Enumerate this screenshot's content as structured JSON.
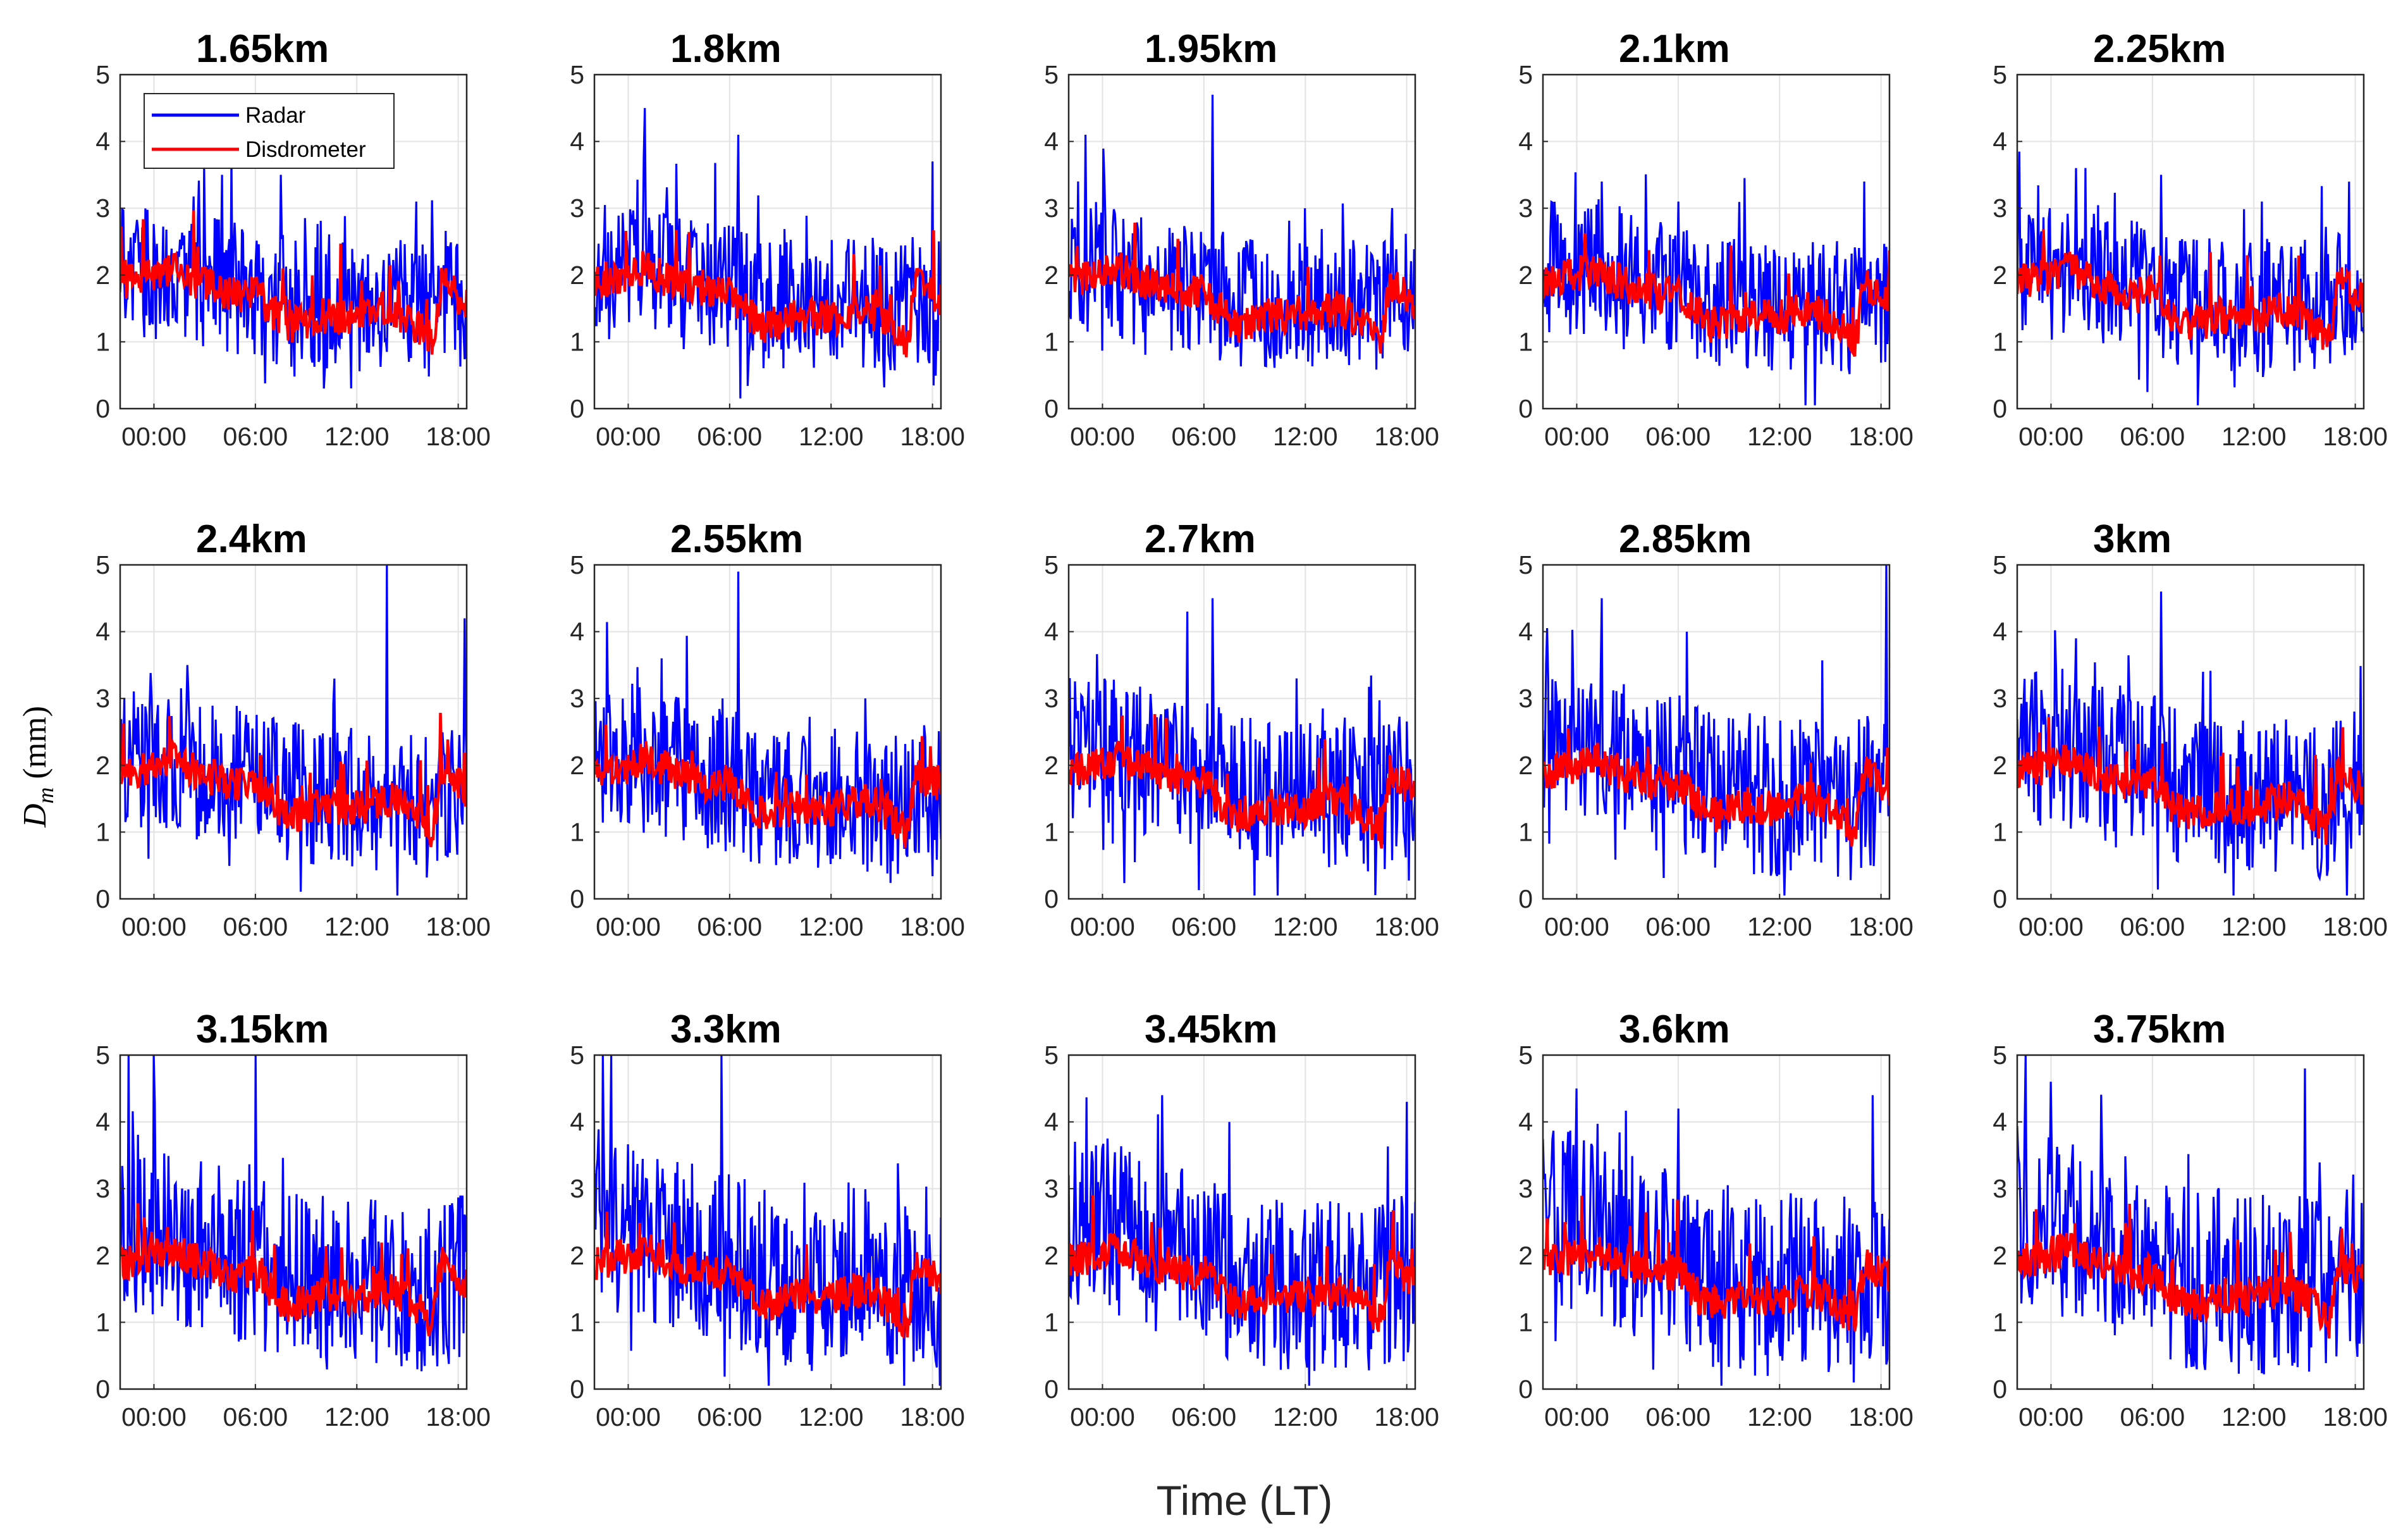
{
  "chart_data": {
    "type": "line",
    "ylabel_main": "D",
    "ylabel_sub": "m",
    "ylabel_unit": " (mm)",
    "xlabel": "Time (LT)",
    "ylim": [
      0,
      5
    ],
    "y_ticks": [
      "0",
      "1",
      "2",
      "3",
      "4",
      "5"
    ],
    "x_ticks": [
      "00:00",
      "06:00",
      "12:00",
      "18:00"
    ],
    "x_tick_hours": [
      0,
      6,
      12,
      18
    ],
    "xlim_hours": [
      -2,
      18.5
    ],
    "legend": {
      "position": "top-left",
      "entries": [
        {
          "name": "Radar",
          "color": "#0000ff"
        },
        {
          "name": "Disdrometer",
          "color": "#ff0000"
        }
      ]
    },
    "series_names": [
      "Radar",
      "Disdrometer"
    ],
    "series_colors": {
      "Radar": "#0000ff",
      "Disdrometer": "#ff0000"
    },
    "disdrometer_profile": {
      "hours": [
        -2,
        0,
        1,
        3,
        5,
        6,
        7,
        8,
        9,
        10,
        12,
        13,
        14,
        15,
        16.5,
        17,
        18,
        18.5
      ],
      "dm": [
        1.9,
        2.0,
        2.1,
        1.85,
        1.7,
        1.75,
        1.45,
        1.25,
        1.3,
        1.4,
        1.35,
        1.45,
        1.5,
        1.35,
        1.0,
        1.9,
        1.7,
        1.6
      ]
    },
    "panels": [
      {
        "title": "1.65km",
        "radar_mean": [
          2.1,
          1.6
        ],
        "radar_spread": 1.0,
        "radar_peaks": [
          [
            4.0,
            3.5
          ],
          [
            7.5,
            3.5
          ],
          [
            15.5,
            3.1
          ]
        ]
      },
      {
        "title": "1.8km",
        "radar_mean": [
          2.1,
          1.6
        ],
        "radar_spread": 1.0,
        "radar_peaks": [
          [
            1.0,
            4.5
          ],
          [
            6.5,
            4.1
          ],
          [
            18.0,
            3.7
          ]
        ]
      },
      {
        "title": "1.95km",
        "radar_mean": [
          2.1,
          1.6
        ],
        "radar_spread": 1.0,
        "radar_peaks": [
          [
            -1.0,
            4.1
          ],
          [
            6.5,
            4.7
          ],
          [
            12.0,
            3.0
          ]
        ]
      },
      {
        "title": "2.1km",
        "radar_mean": [
          2.2,
          1.6
        ],
        "radar_spread": 1.0,
        "radar_peaks": [
          [
            1.5,
            3.4
          ],
          [
            6.0,
            3.1
          ],
          [
            17.0,
            3.4
          ]
        ]
      },
      {
        "title": "2.25km",
        "radar_mean": [
          2.2,
          1.6
        ],
        "radar_spread": 1.0,
        "radar_peaks": [
          [
            1.5,
            3.6
          ],
          [
            6.5,
            3.5
          ],
          [
            12.5,
            3.1
          ]
        ]
      },
      {
        "title": "2.4km",
        "radar_mean": [
          2.3,
          1.5
        ],
        "radar_spread": 1.1,
        "radar_peaks": [
          [
            13.8,
            5.0
          ],
          [
            18.4,
            4.2
          ],
          [
            2.0,
            3.5
          ]
        ]
      },
      {
        "title": "2.55km",
        "radar_mean": [
          2.3,
          1.5
        ],
        "radar_spread": 1.1,
        "radar_peaks": [
          [
            6.5,
            4.9
          ],
          [
            2.0,
            3.6
          ],
          [
            14.0,
            3.0
          ]
        ]
      },
      {
        "title": "2.7km",
        "radar_mean": [
          2.4,
          1.6
        ],
        "radar_spread": 1.1,
        "radar_peaks": [
          [
            5.0,
            4.3
          ],
          [
            6.5,
            4.5
          ],
          [
            11.5,
            3.3
          ]
        ]
      },
      {
        "title": "2.85km",
        "radar_mean": [
          2.5,
          1.6
        ],
        "radar_spread": 1.2,
        "radar_peaks": [
          [
            1.5,
            4.5
          ],
          [
            18.3,
            5.0
          ],
          [
            6.5,
            4.0
          ]
        ]
      },
      {
        "title": "3km",
        "radar_mean": [
          2.5,
          1.6
        ],
        "radar_spread": 1.2,
        "radar_peaks": [
          [
            6.5,
            4.6
          ],
          [
            1.5,
            3.9
          ],
          [
            9.0,
            3.4
          ]
        ]
      },
      {
        "title": "3.15km",
        "radar_mean": [
          2.6,
          1.6
        ],
        "radar_spread": 1.3,
        "radar_peaks": [
          [
            -1.5,
            5.0
          ],
          [
            0.0,
            5.0
          ],
          [
            6.0,
            5.0
          ]
        ]
      },
      {
        "title": "3.3km",
        "radar_mean": [
          2.7,
          1.6
        ],
        "radar_spread": 1.3,
        "radar_peaks": [
          [
            -1.5,
            5.0
          ],
          [
            -1.0,
            5.0
          ],
          [
            5.5,
            5.0
          ]
        ]
      },
      {
        "title": "3.45km",
        "radar_mean": [
          2.7,
          1.6
        ],
        "radar_spread": 1.3,
        "radar_peaks": [
          [
            3.5,
            4.4
          ],
          [
            7.5,
            4.0
          ],
          [
            18.0,
            4.3
          ]
        ]
      },
      {
        "title": "3.6km",
        "radar_mean": [
          2.8,
          1.6
        ],
        "radar_spread": 1.4,
        "radar_peaks": [
          [
            0.0,
            4.5
          ],
          [
            6.0,
            4.2
          ],
          [
            17.5,
            4.4
          ]
        ]
      },
      {
        "title": "3.75km",
        "radar_mean": [
          2.8,
          1.6
        ],
        "radar_spread": 1.4,
        "radar_peaks": [
          [
            -1.5,
            5.0
          ],
          [
            0.0,
            4.6
          ],
          [
            15.0,
            4.8
          ]
        ]
      }
    ]
  }
}
